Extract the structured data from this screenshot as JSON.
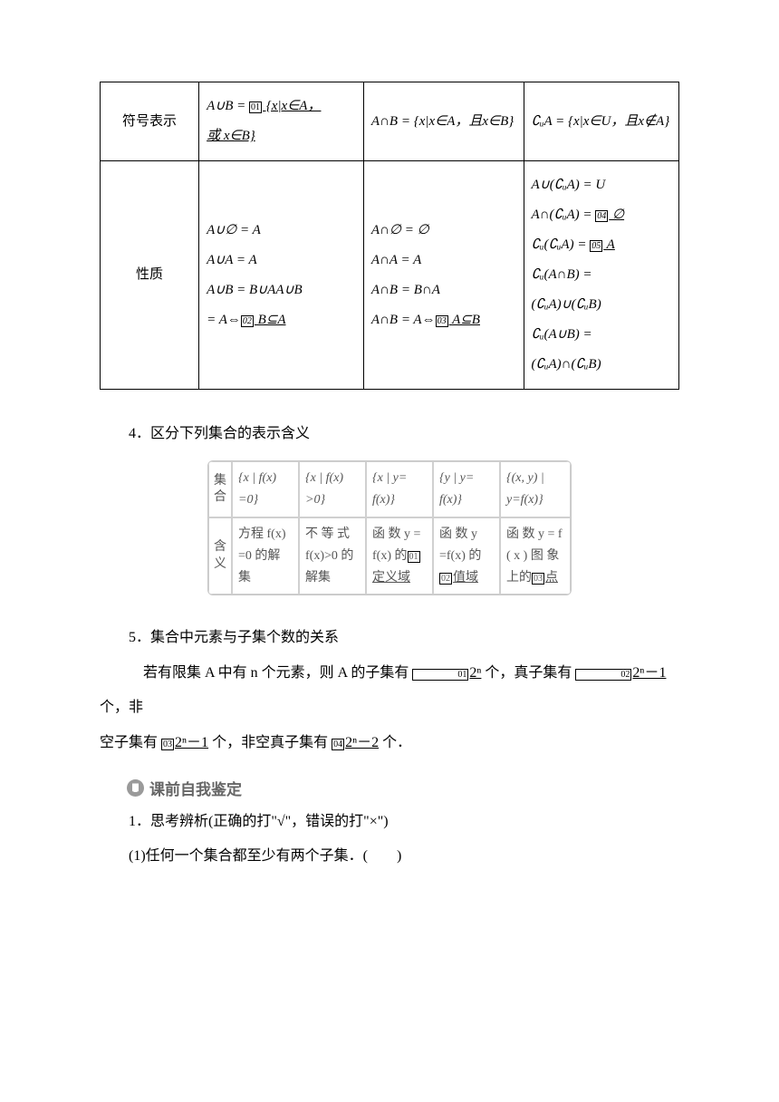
{
  "table1": {
    "row1": {
      "head": "符号表示",
      "c2a": "A∪B = ",
      "c2blank": "01",
      "c2b": " {x|x∈A，",
      "c2c": "或 x∈B}",
      "c3": "A∩B = {x|x∈A，且x∈B}",
      "c4": "∁ᵤA = {x|x∈U，且x∉A}"
    },
    "row2": {
      "head": "性质",
      "c2l1": "A∪∅ = A",
      "c2l2": "A∪A = A",
      "c2l3": "A∪B = B∪AA∪B",
      "c2l4a": " = A⇔",
      "c2blank": "02",
      "c2l4b": " B⊆A",
      "c3l1": "A∩∅ = ∅",
      "c3l2": "A∩A = A",
      "c3l3": "A∩B = B∩A",
      "c3l4a": "A∩B = A⇔",
      "c3blank": "03",
      "c3l4b": " A⊆B",
      "c4l1": "A∪(∁ᵤA) = U",
      "c4l2a": "A∩(∁ᵤA) = ",
      "c4blank2": "04",
      "c4l2b": " ∅",
      "c4l3a": "∁ᵤ(∁ᵤA) = ",
      "c4blank3": "05",
      "c4l3b": " A",
      "c4l4": "∁ᵤ(A∩B) =",
      "c4l5": "(∁ᵤA)∪(∁ᵤB)",
      "c4l6": "∁ᵤ(A∪B) =",
      "c4l7": "(∁ᵤA)∩(∁ᵤB)"
    }
  },
  "sec4": "4．区分下列集合的表示含义",
  "table2": {
    "h1": "集合",
    "h2": "含义",
    "r1c1": "{x | f(x) =0}",
    "r1c2": "{x | f(x) >0}",
    "r1c3": "{x | y= f(x)}",
    "r1c4": "{y | y= f(x)}",
    "r1c5": "{(x, y) | y=f(x)}",
    "r2c1": "方程 f(x) =0 的解集",
    "r2c2": "不 等 式 f(x)>0 的解集",
    "r2c3a": "函 数 y = f(x) 的",
    "r2c3blank": "01",
    "r2c3b": " 定义域",
    "r2c4a": "函 数 y =f(x) 的",
    "r2c4blank": "02",
    "r2c4b": "值域",
    "r2c5a": "函 数 y = f ( x ) 图 象 上的",
    "r2c5blank": "03",
    "r2c5b": "点"
  },
  "sec5": {
    "title": "5．集合中元素与子集个数的关系",
    "line_a": "若有限集 A 中有 n 个元素，则 A 的子集有 ",
    "b1": "01",
    "v1": "2ⁿ",
    "line_b": " 个，真子集有 ",
    "b2": "02",
    "v2": "2ⁿ－1",
    "line_c": " 个，非",
    "line2_a": "空子集有 ",
    "b3": "03",
    "v3": "2ⁿ－1",
    "line2_b": " 个，非空真子集有 ",
    "b4": "04",
    "v4": "2ⁿ－2",
    "line2_c": " 个．"
  },
  "self_check": "课前自我鉴定",
  "q1": "1．思考辨析(正确的打\"√\"，错误的打\"×\")",
  "q1_1": "(1)任何一个集合都至少有两个子集．(　　)"
}
